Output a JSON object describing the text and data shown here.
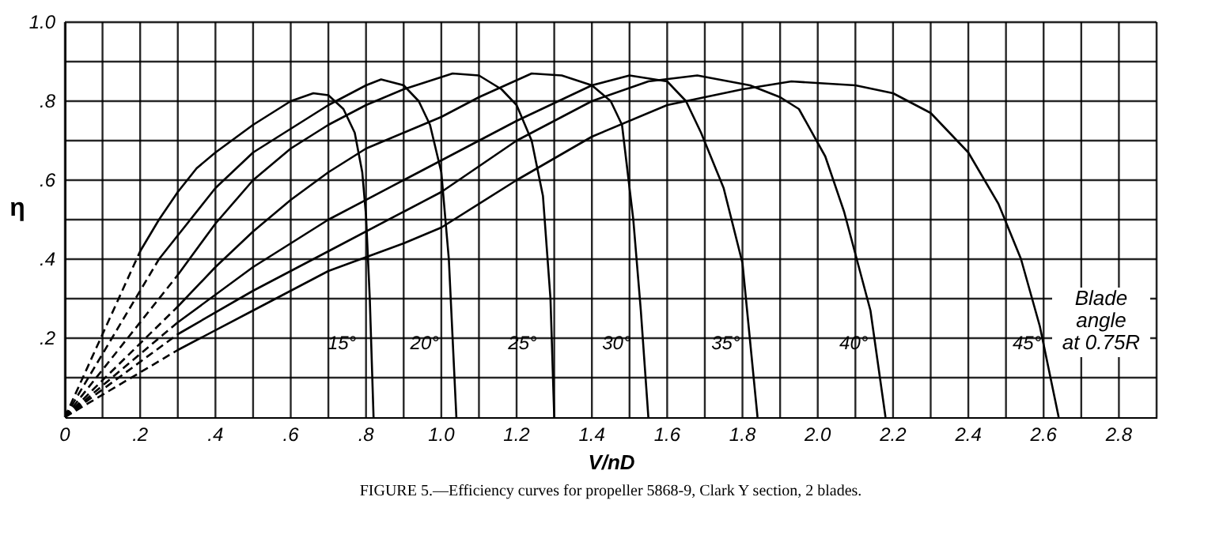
{
  "chart_data": {
    "type": "line",
    "xlabel": "V/nD",
    "ylabel": "η",
    "xlim": [
      0,
      2.9
    ],
    "ylim": [
      0,
      1.0
    ],
    "xticks": [
      0,
      {
        "value": 0.1,
        "label": null
      },
      {
        "value": 0.2,
        "label": ".2"
      },
      {
        "value": 0.3,
        "label": null
      },
      {
        "value": 0.4,
        "label": ".4"
      },
      {
        "value": 0.5,
        "label": null
      },
      {
        "value": 0.6,
        "label": ".6"
      },
      {
        "value": 0.7,
        "label": null
      },
      {
        "value": 0.8,
        "label": ".8"
      },
      {
        "value": 0.9,
        "label": null
      },
      {
        "value": 1.0,
        "label": "1.0"
      },
      {
        "value": 1.1,
        "label": null
      },
      {
        "value": 1.2,
        "label": "1.2"
      },
      {
        "value": 1.3,
        "label": null
      },
      {
        "value": 1.4,
        "label": "1.4"
      },
      {
        "value": 1.5,
        "label": null
      },
      {
        "value": 1.6,
        "label": "1.6"
      },
      {
        "value": 1.7,
        "label": null
      },
      {
        "value": 1.8,
        "label": "1.8"
      },
      {
        "value": 1.9,
        "label": null
      },
      {
        "value": 2.0,
        "label": "2.0"
      },
      {
        "value": 2.1,
        "label": null
      },
      {
        "value": 2.2,
        "label": "2.2"
      },
      {
        "value": 2.3,
        "label": null
      },
      {
        "value": 2.4,
        "label": "2.4"
      },
      {
        "value": 2.5,
        "label": null
      },
      {
        "value": 2.6,
        "label": "2.6"
      },
      {
        "value": 2.7,
        "label": null
      },
      {
        "value": 2.8,
        "label": "2.8"
      },
      {
        "value": 2.9,
        "label": null
      }
    ],
    "yticks": [
      {
        "value": 0.1,
        "label": null
      },
      {
        "value": 0.2,
        "label": ".2"
      },
      {
        "value": 0.3,
        "label": null
      },
      {
        "value": 0.4,
        "label": ".4"
      },
      {
        "value": 0.5,
        "label": null
      },
      {
        "value": 0.6,
        "label": ".6"
      },
      {
        "value": 0.7,
        "label": null
      },
      {
        "value": 0.8,
        "label": ".8"
      },
      {
        "value": 0.9,
        "label": null
      },
      {
        "value": 1.0,
        "label": "1.0"
      }
    ],
    "grid": true,
    "legend": false,
    "marker": "none",
    "line_style": "solid",
    "series": [
      {
        "color": "#000000",
        "line_style": "dashed",
        "x": [
          0,
          0.2
        ],
        "values": [
          0,
          0.42
        ]
      },
      {
        "name": "15°",
        "color": "#000000",
        "x": [
          0.2,
          0.25,
          0.3,
          0.35,
          0.4,
          0.5,
          0.6,
          0.66,
          0.7,
          0.74,
          0.77,
          0.79,
          0.8,
          0.81,
          0.82
        ],
        "values": [
          0.42,
          0.5,
          0.57,
          0.63,
          0.67,
          0.74,
          0.8,
          0.82,
          0.815,
          0.78,
          0.72,
          0.62,
          0.51,
          0.3,
          0
        ]
      },
      {
        "color": "#000000",
        "line_style": "dashed",
        "x": [
          0,
          0.25
        ],
        "values": [
          0,
          0.4
        ]
      },
      {
        "name": "20°",
        "color": "#000000",
        "x": [
          0.25,
          0.3,
          0.4,
          0.5,
          0.6,
          0.7,
          0.8,
          0.84,
          0.9,
          0.94,
          0.97,
          1.0,
          1.02,
          1.04
        ],
        "values": [
          0.4,
          0.46,
          0.58,
          0.67,
          0.73,
          0.79,
          0.84,
          0.855,
          0.84,
          0.8,
          0.74,
          0.62,
          0.4,
          0
        ]
      },
      {
        "color": "#000000",
        "line_style": "dashed",
        "x": [
          0,
          0.3
        ],
        "values": [
          0,
          0.36
        ]
      },
      {
        "name": "25°",
        "color": "#000000",
        "x": [
          0.3,
          0.4,
          0.5,
          0.6,
          0.7,
          0.8,
          0.9,
          1.03,
          1.1,
          1.16,
          1.2,
          1.24,
          1.27,
          1.29,
          1.3
        ],
        "values": [
          0.36,
          0.49,
          0.6,
          0.68,
          0.74,
          0.79,
          0.83,
          0.87,
          0.865,
          0.83,
          0.79,
          0.7,
          0.56,
          0.3,
          0
        ]
      },
      {
        "color": "#000000",
        "line_style": "dashed",
        "x": [
          0,
          0.3
        ],
        "values": [
          0,
          0.28
        ]
      },
      {
        "name": "30°",
        "color": "#000000",
        "x": [
          0.3,
          0.4,
          0.5,
          0.6,
          0.7,
          0.8,
          0.9,
          1.0,
          1.1,
          1.24,
          1.32,
          1.4,
          1.45,
          1.48,
          1.51,
          1.53,
          1.55
        ],
        "values": [
          0.28,
          0.38,
          0.47,
          0.55,
          0.62,
          0.68,
          0.72,
          0.76,
          0.81,
          0.87,
          0.865,
          0.84,
          0.8,
          0.74,
          0.5,
          0.27,
          0
        ]
      },
      {
        "color": "#000000",
        "line_style": "dashed",
        "x": [
          0,
          0.3
        ],
        "values": [
          0,
          0.24
        ]
      },
      {
        "name": "35°",
        "color": "#000000",
        "x": [
          0.3,
          0.5,
          0.7,
          0.9,
          1.0,
          1.2,
          1.4,
          1.5,
          1.6,
          1.65,
          1.69,
          1.75,
          1.8,
          1.84
        ],
        "values": [
          0.24,
          0.38,
          0.5,
          0.6,
          0.65,
          0.75,
          0.84,
          0.865,
          0.85,
          0.8,
          0.72,
          0.58,
          0.39,
          0
        ]
      },
      {
        "color": "#000000",
        "line_style": "dashed",
        "x": [
          0,
          0.3
        ],
        "values": [
          0,
          0.21
        ]
      },
      {
        "name": "40°",
        "color": "#000000",
        "x": [
          0.3,
          0.5,
          0.7,
          0.9,
          1.0,
          1.2,
          1.4,
          1.55,
          1.68,
          1.82,
          1.9,
          1.95,
          2.02,
          2.07,
          2.14,
          2.18
        ],
        "values": [
          0.21,
          0.32,
          0.42,
          0.52,
          0.57,
          0.7,
          0.8,
          0.85,
          0.865,
          0.84,
          0.81,
          0.78,
          0.66,
          0.52,
          0.27,
          0
        ]
      },
      {
        "color": "#000000",
        "line_style": "dashed",
        "x": [
          0,
          0.3
        ],
        "values": [
          0,
          0.17
        ]
      },
      {
        "name": "45°",
        "color": "#000000",
        "x": [
          0.3,
          0.5,
          0.7,
          0.9,
          1.0,
          1.2,
          1.4,
          1.6,
          1.8,
          1.93,
          2.1,
          2.2,
          2.3,
          2.4,
          2.48,
          2.54,
          2.59,
          2.64
        ],
        "values": [
          0.17,
          0.27,
          0.37,
          0.44,
          0.48,
          0.6,
          0.71,
          0.79,
          0.83,
          0.85,
          0.84,
          0.82,
          0.77,
          0.67,
          0.54,
          0.4,
          0.23,
          0
        ]
      }
    ],
    "annotations": [
      "Blade angle at 0.75R",
      "FIGURE 5.—Efficiency curves for propeller 5868-9, Clark Y section, 2 blades."
    ]
  }
}
